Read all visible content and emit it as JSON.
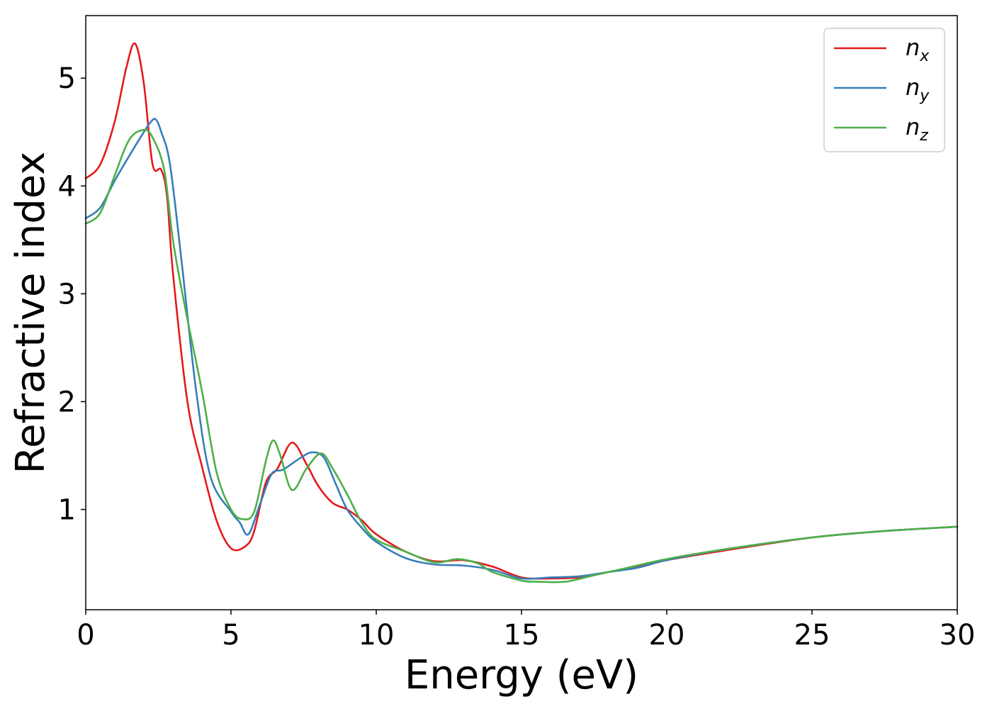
{
  "chart_data": {
    "type": "line",
    "title": "",
    "xlabel": "Energy (eV)",
    "ylabel": "Refractive index",
    "xlim": [
      0,
      30
    ],
    "ylim": [
      0.07,
      5.58
    ],
    "xticks": [
      0,
      5,
      10,
      15,
      20,
      25,
      30
    ],
    "yticks": [
      1,
      2,
      3,
      4,
      5
    ],
    "grid": false,
    "legend_position": "top-right",
    "series": [
      {
        "name": "n_x",
        "label_main": "n",
        "label_sub": "x",
        "color": "#e41a1c",
        "x": [
          0,
          0.5,
          1.0,
          1.4,
          1.7,
          2.0,
          2.3,
          2.6,
          2.8,
          3.0,
          3.5,
          4.0,
          4.5,
          5.0,
          5.5,
          5.8,
          6.2,
          6.6,
          7.1,
          7.6,
          8.0,
          8.5,
          9.0,
          9.5,
          10.0,
          11.0,
          12.0,
          13.0,
          14.0,
          15.0,
          16.0,
          17.0,
          18.0,
          19.0,
          20.0,
          22.0,
          25.0,
          27.5,
          30.0
        ],
        "y": [
          4.07,
          4.2,
          4.6,
          5.1,
          5.32,
          4.95,
          4.2,
          4.15,
          3.9,
          3.2,
          2.0,
          1.4,
          0.9,
          0.64,
          0.66,
          0.8,
          1.25,
          1.38,
          1.62,
          1.42,
          1.22,
          1.06,
          1.0,
          0.9,
          0.77,
          0.61,
          0.52,
          0.53,
          0.47,
          0.37,
          0.36,
          0.37,
          0.42,
          0.47,
          0.53,
          0.62,
          0.74,
          0.8,
          0.84
        ]
      },
      {
        "name": "n_y",
        "label_main": "n",
        "label_sub": "y",
        "color": "#377eb8",
        "x": [
          0,
          0.5,
          1.0,
          1.5,
          2.0,
          2.2,
          2.4,
          2.6,
          2.9,
          3.3,
          3.8,
          4.3,
          5.0,
          5.3,
          5.6,
          6.0,
          6.4,
          6.8,
          7.4,
          7.8,
          8.2,
          8.6,
          9.0,
          9.5,
          10.0,
          11.0,
          12.0,
          13.0,
          14.0,
          15.0,
          16.0,
          17.0,
          18.0,
          19.0,
          20.0,
          22.0,
          25.0,
          27.5,
          30.0
        ],
        "y": [
          3.7,
          3.8,
          4.05,
          4.28,
          4.5,
          4.58,
          4.62,
          4.5,
          4.2,
          3.3,
          2.1,
          1.3,
          0.98,
          0.88,
          0.77,
          1.05,
          1.33,
          1.37,
          1.48,
          1.53,
          1.48,
          1.24,
          1.0,
          0.83,
          0.7,
          0.55,
          0.49,
          0.48,
          0.44,
          0.36,
          0.37,
          0.38,
          0.42,
          0.46,
          0.53,
          0.63,
          0.74,
          0.8,
          0.84
        ]
      },
      {
        "name": "n_z",
        "label_main": "n",
        "label_sub": "z",
        "color": "#4daf4a",
        "x": [
          0,
          0.5,
          1.0,
          1.5,
          2.0,
          2.3,
          2.7,
          3.0,
          3.4,
          4.0,
          4.5,
          5.0,
          5.4,
          5.8,
          6.2,
          6.45,
          6.7,
          7.1,
          7.6,
          8.1,
          8.5,
          9.0,
          9.5,
          10.0,
          11.0,
          12.0,
          12.8,
          13.5,
          14.0,
          15.0,
          15.5,
          16.5,
          17.5,
          18.5,
          20.0,
          22.0,
          25.0,
          27.5,
          30.0
        ],
        "y": [
          3.65,
          3.75,
          4.1,
          4.43,
          4.52,
          4.45,
          4.15,
          3.5,
          2.9,
          2.1,
          1.35,
          1.0,
          0.91,
          0.98,
          1.45,
          1.64,
          1.5,
          1.18,
          1.38,
          1.52,
          1.38,
          1.14,
          0.88,
          0.72,
          0.61,
          0.51,
          0.54,
          0.5,
          0.42,
          0.34,
          0.33,
          0.33,
          0.39,
          0.45,
          0.54,
          0.63,
          0.74,
          0.8,
          0.84
        ]
      }
    ]
  }
}
